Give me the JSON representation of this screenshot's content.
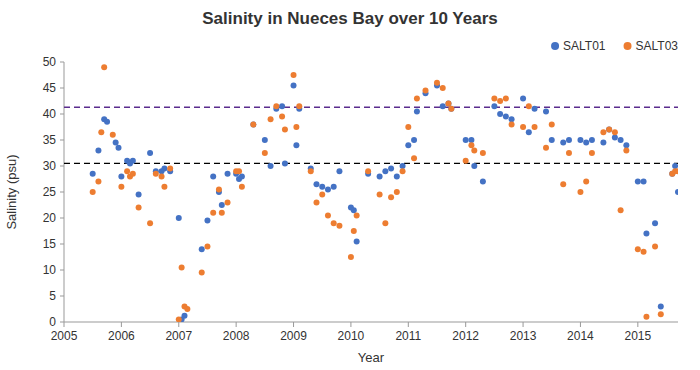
{
  "chart_data": {
    "type": "scatter",
    "title": "Salinity in Nueces Bay over 10 Years",
    "xlabel": "Year",
    "ylabel": "Salinity (psu)",
    "xlim": [
      2005,
      2015.7
    ],
    "ylim": [
      0,
      50
    ],
    "xticks": [
      2005,
      2006,
      2007,
      2008,
      2009,
      2010,
      2011,
      2012,
      2013,
      2014,
      2015
    ],
    "yticks": [
      0,
      5,
      10,
      15,
      20,
      25,
      30,
      35,
      40,
      45,
      50
    ],
    "grid": false,
    "legend": "upper right",
    "marker": "circle",
    "series": [
      {
        "name": "SALT01",
        "color": "#4472C4",
        "x": [
          2005.5,
          2005.6,
          2005.7,
          2005.75,
          2005.9,
          2005.95,
          2006.0,
          2006.1,
          2006.15,
          2006.2,
          2006.3,
          2006.5,
          2006.6,
          2006.7,
          2006.75,
          2006.85,
          2007.0,
          2007.05,
          2007.1,
          2007.4,
          2007.5,
          2007.6,
          2007.7,
          2007.75,
          2007.85,
          2008.0,
          2008.05,
          2008.1,
          2008.3,
          2008.5,
          2008.6,
          2008.7,
          2008.8,
          2008.85,
          2009.0,
          2009.05,
          2009.1,
          2009.3,
          2009.4,
          2009.5,
          2009.6,
          2009.7,
          2009.8,
          2010.0,
          2010.05,
          2010.1,
          2010.3,
          2010.5,
          2010.6,
          2010.7,
          2010.8,
          2010.9,
          2011.0,
          2011.1,
          2011.15,
          2011.3,
          2011.5,
          2011.6,
          2011.7,
          2011.75,
          2012.0,
          2012.1,
          2012.15,
          2012.3,
          2012.5,
          2012.6,
          2012.7,
          2012.8,
          2013.0,
          2013.1,
          2013.2,
          2013.4,
          2013.5,
          2013.7,
          2013.8,
          2014.0,
          2014.1,
          2014.2,
          2014.4,
          2014.5,
          2014.6,
          2014.7,
          2014.8,
          2015.0,
          2015.1,
          2015.15,
          2015.3,
          2015.4,
          2015.6,
          2015.65,
          2015.7
        ],
        "values": [
          28.5,
          33.0,
          39.0,
          38.5,
          34.5,
          33.5,
          28.0,
          31.0,
          30.5,
          31.0,
          24.5,
          32.5,
          29.0,
          29.0,
          29.5,
          29.0,
          20.0,
          0.5,
          1.2,
          14.0,
          19.5,
          28.0,
          25.0,
          22.5,
          28.5,
          28.5,
          27.5,
          28.0,
          38.0,
          35.0,
          30.0,
          41.0,
          41.5,
          30.5,
          45.5,
          34.0,
          41.0,
          29.5,
          26.5,
          26.0,
          25.5,
          26.0,
          29.0,
          22.0,
          21.5,
          15.5,
          28.5,
          28.0,
          29.0,
          29.5,
          28.0,
          30.0,
          34.0,
          35.0,
          40.5,
          44.0,
          45.5,
          41.5,
          42.0,
          41.0,
          35.0,
          35.0,
          30.0,
          27.0,
          41.5,
          40.0,
          39.5,
          39.0,
          43.0,
          36.5,
          41.0,
          40.5,
          35.0,
          34.5,
          35.0,
          35.0,
          34.5,
          35.0,
          34.5,
          37.0,
          35.5,
          35.0,
          34.0,
          27.0,
          27.0,
          17.0,
          19.0,
          3.0,
          28.5,
          30.0,
          25.0
        ]
      },
      {
        "name": "SALT03",
        "color": "#ED7D31",
        "x": [
          2005.5,
          2005.6,
          2005.65,
          2005.7,
          2005.85,
          2006.0,
          2006.1,
          2006.15,
          2006.2,
          2006.3,
          2006.5,
          2006.6,
          2006.7,
          2006.75,
          2006.85,
          2007.0,
          2007.05,
          2007.1,
          2007.15,
          2007.4,
          2007.5,
          2007.6,
          2007.7,
          2007.75,
          2007.85,
          2008.0,
          2008.05,
          2008.1,
          2008.3,
          2008.5,
          2008.6,
          2008.7,
          2008.8,
          2008.85,
          2009.0,
          2009.05,
          2009.1,
          2009.3,
          2009.4,
          2009.5,
          2009.6,
          2009.7,
          2009.8,
          2010.0,
          2010.05,
          2010.1,
          2010.3,
          2010.5,
          2010.6,
          2010.7,
          2010.8,
          2010.9,
          2011.0,
          2011.1,
          2011.15,
          2011.3,
          2011.5,
          2011.6,
          2011.7,
          2011.75,
          2012.0,
          2012.1,
          2012.15,
          2012.3,
          2012.5,
          2012.6,
          2012.7,
          2012.8,
          2013.0,
          2013.1,
          2013.2,
          2013.4,
          2013.5,
          2013.7,
          2013.8,
          2014.0,
          2014.1,
          2014.2,
          2014.4,
          2014.5,
          2014.6,
          2014.7,
          2014.8,
          2015.0,
          2015.1,
          2015.15,
          2015.3,
          2015.4,
          2015.6,
          2015.65,
          2015.7
        ],
        "values": [
          25.0,
          27.0,
          36.5,
          49.0,
          36.0,
          26.0,
          29.0,
          28.0,
          28.5,
          22.0,
          19.0,
          28.5,
          28.0,
          26.0,
          29.5,
          0.5,
          10.5,
          3.0,
          2.5,
          9.5,
          14.5,
          21.0,
          25.5,
          21.0,
          23.0,
          29.0,
          29.0,
          26.0,
          38.0,
          32.5,
          39.0,
          41.5,
          39.5,
          37.0,
          47.5,
          37.5,
          41.5,
          29.0,
          23.0,
          24.5,
          20.5,
          19.0,
          18.5,
          12.5,
          17.5,
          20.5,
          29.0,
          24.5,
          19.0,
          24.0,
          25.0,
          29.0,
          37.5,
          31.5,
          43.0,
          44.5,
          46.0,
          45.0,
          42.0,
          41.0,
          31.0,
          34.0,
          33.0,
          32.5,
          43.0,
          42.5,
          43.0,
          38.0,
          37.5,
          41.5,
          37.5,
          33.5,
          38.0,
          26.5,
          32.5,
          25.0,
          27.0,
          32.5,
          36.5,
          37.0,
          36.5,
          21.5,
          33.0,
          14.0,
          13.5,
          1.0,
          14.5,
          1.5,
          28.5,
          29.0,
          29.0
        ]
      }
    ],
    "reference_lines": [
      {
        "value": 30.5,
        "color": "#000000",
        "line_style": "dashed"
      },
      {
        "value": 41.3,
        "color": "#5B2C8D",
        "line_style": "dashed"
      }
    ]
  }
}
